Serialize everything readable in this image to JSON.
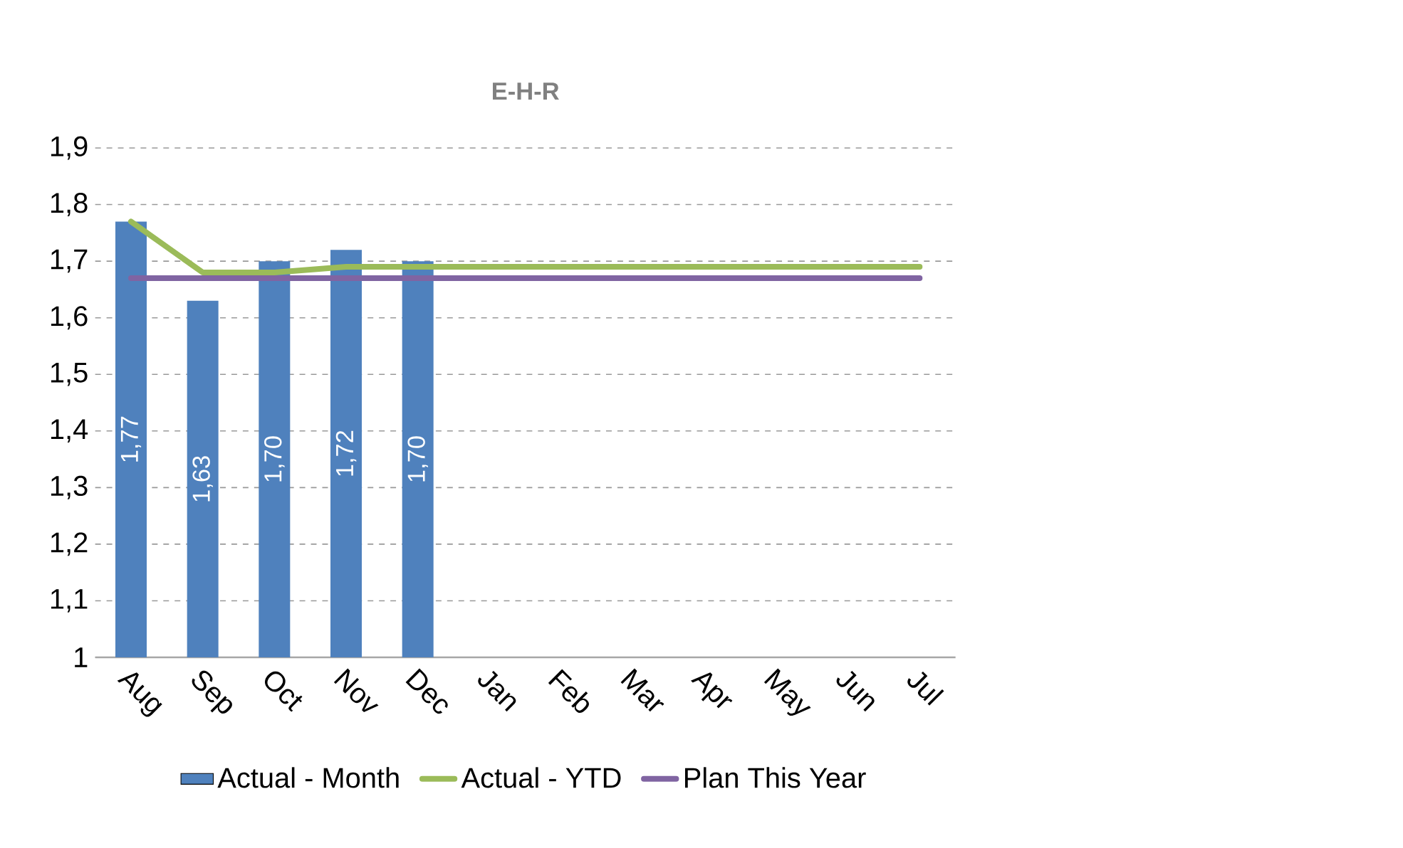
{
  "chart_data": {
    "type": "bar",
    "title": "E-H-R",
    "categories": [
      "Aug",
      "Sep",
      "Oct",
      "Nov",
      "Dec",
      "Jan",
      "Feb",
      "Mar",
      "Apr",
      "May",
      "Jun",
      "Jul"
    ],
    "series": [
      {
        "name": "Actual - Month",
        "color": "#4f81bd",
        "values": [
          1.77,
          1.63,
          1.7,
          1.72,
          1.7,
          null,
          null,
          null,
          null,
          null,
          null,
          null
        ],
        "value_labels": [
          "1,77",
          "1,63",
          "1,70",
          "1,72",
          "1,70",
          null,
          null,
          null,
          null,
          null,
          null,
          null
        ]
      },
      {
        "name": "Actual - YTD",
        "type": "line",
        "color": "#9bbb59",
        "values": [
          1.77,
          1.68,
          1.68,
          1.69,
          1.69,
          1.69,
          1.69,
          1.69,
          1.69,
          1.69,
          1.69,
          1.69
        ]
      },
      {
        "name": "Plan This Year",
        "type": "line",
        "color": "#8064a2",
        "values": [
          1.67,
          1.67,
          1.67,
          1.67,
          1.67,
          1.67,
          1.67,
          1.67,
          1.67,
          1.67,
          1.67,
          1.67
        ]
      }
    ],
    "ylim": [
      1,
      1.9
    ],
    "yticks": [
      1,
      {
        "value": 1.1,
        "label": "1,1"
      },
      {
        "value": 1.2,
        "label": "1,2"
      },
      {
        "value": 1.3,
        "label": "1,3"
      },
      {
        "value": 1.4,
        "label": "1,4"
      },
      {
        "value": 1.5,
        "label": "1,5"
      },
      {
        "value": 1.6,
        "label": "1,6"
      },
      {
        "value": 1.7,
        "label": "1,7"
      },
      {
        "value": 1.8,
        "label": "1,8"
      },
      {
        "value": 1.9,
        "label": "1,9"
      }
    ],
    "grid": "y",
    "legend": "bottom"
  }
}
